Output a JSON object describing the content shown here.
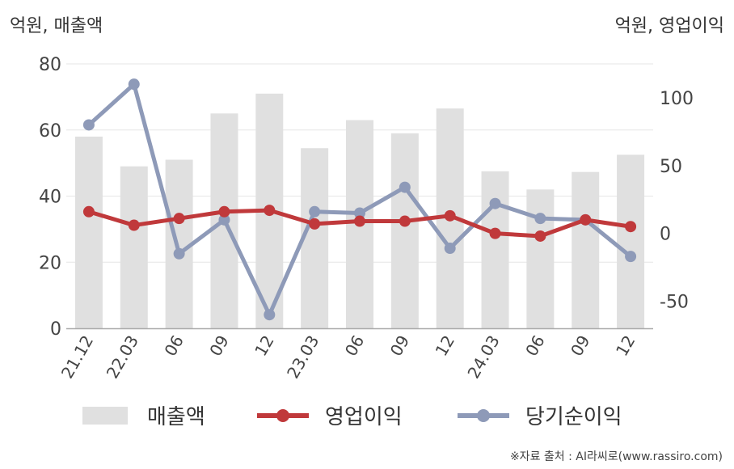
{
  "left_unit_label": "억원, 매출액",
  "right_unit_label": "억원, 영업이익",
  "source": "※자료 출처 : AI라씨로(www.rassiro.com)",
  "colors": {
    "bar": "#e0e0e0",
    "operating_profit": "#c0393b",
    "net_income": "#8e9ab8",
    "grid": "#e6e6e6",
    "axis": "#aaaaaa"
  },
  "chart_data": {
    "type": "bar",
    "categories": [
      "21.12",
      "22.03",
      "06",
      "09",
      "12",
      "23.03",
      "06",
      "09",
      "12",
      "24.03",
      "06",
      "09",
      "12"
    ],
    "left_axis": {
      "ylim": [
        0,
        80
      ],
      "ticks": [
        "0",
        "20",
        "40",
        "60",
        "80"
      ]
    },
    "right_axis": {
      "ylim": [
        -70,
        125
      ],
      "ticks": [
        "-50",
        "0",
        "50",
        "100"
      ]
    },
    "legend": {
      "position": "bottom",
      "labels": [
        "매출액",
        "영업이익",
        "당기순이익"
      ]
    },
    "series": [
      {
        "name": "매출액",
        "type": "bar",
        "axis": "left",
        "values": [
          58,
          49,
          51,
          65,
          71,
          54.5,
          63,
          59,
          66.5,
          47.5,
          42,
          47.3,
          52.5
        ]
      },
      {
        "name": "영업이익",
        "type": "line",
        "axis": "right",
        "values": [
          16,
          6,
          11,
          16,
          17,
          7,
          9,
          9,
          13,
          0,
          -2,
          10,
          5
        ]
      },
      {
        "name": "당기순이익",
        "type": "line",
        "axis": "right",
        "values": [
          80,
          110,
          -15,
          10,
          -60,
          16,
          15,
          34,
          -11,
          22,
          11,
          10,
          -17
        ]
      }
    ]
  }
}
